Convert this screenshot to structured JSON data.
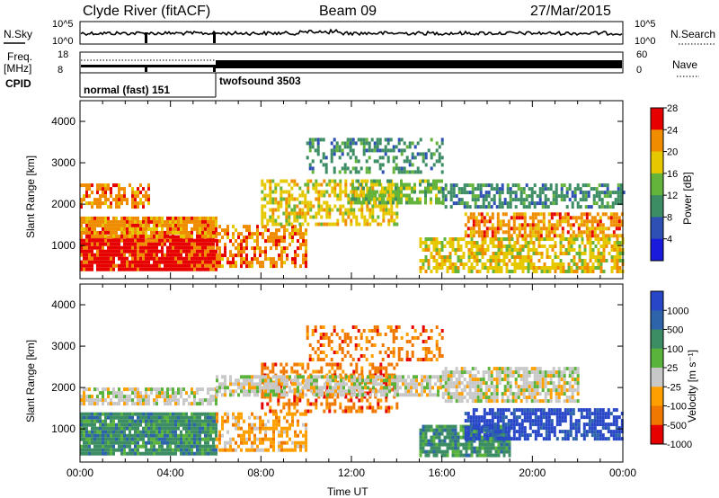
{
  "header": {
    "radar": "Clyde River (fitACF)",
    "beam": "Beam 09",
    "date": "27/Mar/2015"
  },
  "strip_nsky": {
    "left_label": "N.Sky",
    "right_label": "N.Search",
    "ticks": [
      "10^5",
      "10^0"
    ],
    "right_ticks": [
      "10^5",
      "10^0"
    ]
  },
  "strip_freq": {
    "left_label_1": "Freq.",
    "left_label_2": "[MHz]",
    "ticks": [
      "18",
      "8"
    ],
    "right_label": "Nave",
    "right_ticks": [
      "60",
      "0"
    ]
  },
  "strip_cpid": {
    "label": "CPID",
    "modes": [
      {
        "name": "normal (fast) 151",
        "start_hour": 0,
        "end_hour": 6
      },
      {
        "name": "twofsound 3503",
        "start_hour": 6,
        "end_hour": 24
      }
    ]
  },
  "chart_data": [
    {
      "type": "heatmap",
      "parameter": "Power",
      "ylabel": "Slant Range [km]",
      "xlabel": "",
      "x_range_hours": [
        0,
        24
      ],
      "ylim": [
        200,
        4500
      ],
      "y_ticks": [
        "1000",
        "2000",
        "3000",
        "4000"
      ],
      "colorbar_label": "Power [dB]",
      "colorbar_ticks": [
        "4",
        "8",
        "12",
        "16",
        "20",
        "24",
        "28"
      ],
      "colorbar_range": [
        0,
        30
      ],
      "colors": [
        "#1a1adc",
        "#2e50b4",
        "#3c8c64",
        "#64b43c",
        "#e6c800",
        "#f08c00",
        "#e60000"
      ],
      "bands": [
        {
          "start": 0,
          "end": 6,
          "low": 400,
          "high": 1250,
          "level": 6,
          "density": 0.95
        },
        {
          "start": 0,
          "end": 6,
          "low": 1200,
          "high": 1700,
          "level": 5,
          "density": 0.9
        },
        {
          "start": 0,
          "end": 3,
          "low": 1900,
          "high": 2500,
          "level": 5,
          "density": 0.6
        },
        {
          "start": 6,
          "end": 10,
          "low": 500,
          "high": 1500,
          "level": 5,
          "density": 0.6
        },
        {
          "start": 8,
          "end": 14,
          "low": 1500,
          "high": 2600,
          "level": 4,
          "density": 0.55
        },
        {
          "start": 10,
          "end": 16,
          "low": 2800,
          "high": 3600,
          "level": 2,
          "density": 0.4
        },
        {
          "start": 12,
          "end": 16,
          "low": 2000,
          "high": 2600,
          "level": 3,
          "density": 0.6
        },
        {
          "start": 15,
          "end": 24,
          "low": 400,
          "high": 1200,
          "level": 4,
          "density": 0.65
        },
        {
          "start": 17,
          "end": 24,
          "low": 1200,
          "high": 1800,
          "level": 5,
          "density": 0.65
        },
        {
          "start": 16,
          "end": 24,
          "low": 1900,
          "high": 2500,
          "level": 2,
          "density": 0.6
        }
      ]
    },
    {
      "type": "heatmap",
      "parameter": "Velocity",
      "ylabel": "Slant Range [km]",
      "xlabel": "Time UT",
      "x_range_hours": [
        0,
        24
      ],
      "x_ticks": [
        "00:00",
        "04:00",
        "08:00",
        "12:00",
        "16:00",
        "20:00",
        "00:00"
      ],
      "ylim": [
        200,
        4500
      ],
      "y_ticks": [
        "1000",
        "2000",
        "3000",
        "4000"
      ],
      "colorbar_label": "Velocity  [m s⁻¹]",
      "colorbar_ticks": [
        "1000",
        "500",
        "100",
        "25",
        "-25",
        "-100",
        "-500",
        "-1000"
      ],
      "colors": [
        "#2846c8",
        "#2d64aa",
        "#3c8c64",
        "#5ab43c",
        "#c8c8c8",
        "#ffa000",
        "#f07800",
        "#e60000"
      ],
      "bands": [
        {
          "start": 0,
          "end": 6,
          "low": 400,
          "high": 1400,
          "level": 2,
          "density": 0.95
        },
        {
          "start": 0,
          "end": 6,
          "low": 1600,
          "high": 2000,
          "level": 4,
          "density": 0.7
        },
        {
          "start": 6,
          "end": 10,
          "low": 500,
          "high": 1400,
          "level": 5,
          "density": 0.55
        },
        {
          "start": 8,
          "end": 14,
          "low": 1400,
          "high": 2600,
          "level": 6,
          "density": 0.45
        },
        {
          "start": 6,
          "end": 16,
          "low": 1800,
          "high": 2300,
          "level": 4,
          "density": 0.75
        },
        {
          "start": 16,
          "end": 22,
          "low": 1700,
          "high": 2500,
          "level": 4,
          "density": 0.75
        },
        {
          "start": 15,
          "end": 19,
          "low": 400,
          "high": 1100,
          "level": 2,
          "density": 0.85
        },
        {
          "start": 17,
          "end": 24,
          "low": 800,
          "high": 1500,
          "level": 0,
          "density": 0.75
        },
        {
          "start": 10,
          "end": 16,
          "low": 2700,
          "high": 3500,
          "level": 6,
          "density": 0.35
        }
      ]
    }
  ]
}
